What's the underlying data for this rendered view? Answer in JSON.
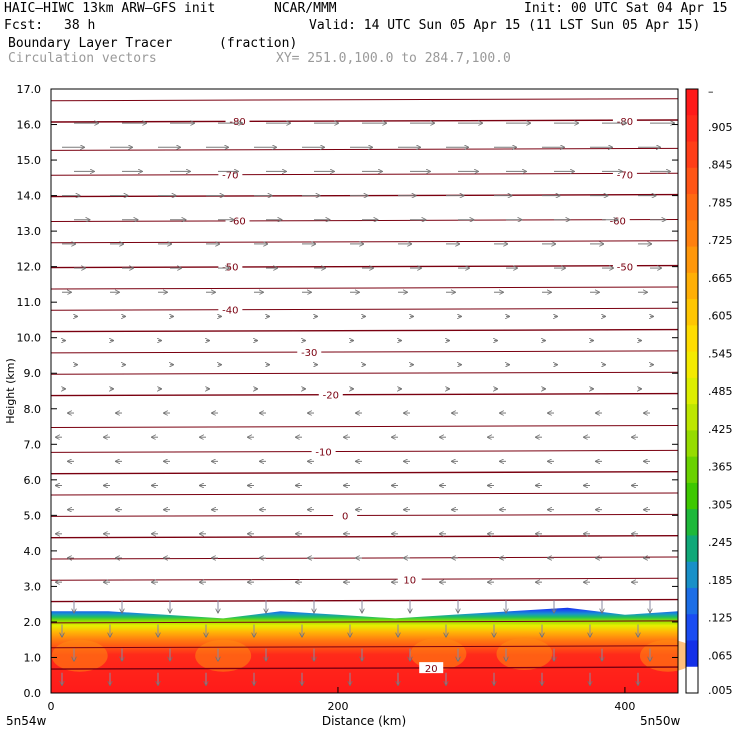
{
  "header": {
    "model": "HAIC–HIWC 13km ARW–GFS init",
    "org": "NCAR/MMM",
    "init": "Init: 00 UTC Sat 04 Apr 15",
    "fcst_label": "Fcst:",
    "fcst_value": "38 h",
    "valid": "Valid: 14 UTC Sun 05 Apr 15 (11 LST Sun 05 Apr 15)",
    "field": "Boundary Layer Tracer",
    "units": "(fraction)",
    "vectors": "Circulation vectors",
    "xy_range": "XY= 251.0,100.0 to 284.7,100.0"
  },
  "axes": {
    "ylabel": "Height (km)",
    "xlabel": "Distance (km)",
    "x_left_label": "5n54w",
    "x_right_label": "5n50w"
  },
  "colorbar": {
    "labels": [
      "–",
      ".905",
      ".845",
      ".785",
      ".725",
      ".665",
      ".605",
      ".545",
      ".485",
      ".425",
      ".365",
      ".305",
      ".245",
      ".185",
      ".125",
      ".065",
      ".005"
    ],
    "colors": [
      "#ff1a1a",
      "#ff2a1a",
      "#ff3e18",
      "#ff5516",
      "#ff6a12",
      "#ff800e",
      "#ff970a",
      "#ffaf06",
      "#ffc602",
      "#ffdc00",
      "#f4ea00",
      "#dcee00",
      "#bde600",
      "#96dc00",
      "#6ad200",
      "#3ec800",
      "#1eb83a",
      "#10a878",
      "#1890c8",
      "#1c6ee6",
      "#1a4cf2",
      "#1430e8",
      "#ffffff"
    ]
  },
  "chart_data": {
    "type": "heatmap",
    "title": "Boundary Layer Tracer",
    "xlabel": "Distance (km)",
    "ylabel": "Height (km)",
    "xlim": [
      0,
      437
    ],
    "ylim": [
      0,
      17
    ],
    "x_ticks": [
      0,
      200,
      400
    ],
    "y_ticks": [
      "0.0",
      "1.0",
      "2.0",
      "3.0",
      "4.0",
      "5.0",
      "6.0",
      "7.0",
      "8.0",
      "9.0",
      "10.0",
      "11.0",
      "12.0",
      "13.0",
      "14.0",
      "15.0",
      "16.0",
      "17.0"
    ],
    "colorbar_range": [
      0.005,
      0.905
    ],
    "boundary_layer_top_km": [
      2.3,
      2.3,
      2.2,
      2.1,
      2.3,
      2.2,
      2.1,
      2.2,
      2.3,
      2.4,
      2.2,
      2.3
    ],
    "boundary_layer_x_km": [
      0,
      40,
      80,
      120,
      160,
      200,
      240,
      280,
      320,
      360,
      400,
      437
    ],
    "contour_series": {
      "name": "temperature contours",
      "labels": [
        {
          "value": "-80",
          "x": 130,
          "y": 16.1
        },
        {
          "value": "-80",
          "x": 400,
          "y": 16.1
        },
        {
          "value": "-70",
          "x": 125,
          "y": 14.6
        },
        {
          "value": "-70",
          "x": 400,
          "y": 14.6
        },
        {
          "value": "-60",
          "x": 130,
          "y": 13.3
        },
        {
          "value": "-60",
          "x": 395,
          "y": 13.3
        },
        {
          "value": "-50",
          "x": 125,
          "y": 12.0
        },
        {
          "value": "-50",
          "x": 400,
          "y": 12.0
        },
        {
          "value": "-40",
          "x": 125,
          "y": 10.8
        },
        {
          "value": "-30",
          "x": 180,
          "y": 9.6
        },
        {
          "value": "-20",
          "x": 195,
          "y": 8.4
        },
        {
          "value": "-10",
          "x": 190,
          "y": 6.8
        },
        {
          "value": "0",
          "x": 205,
          "y": 5.0
        },
        {
          "value": "10",
          "x": 250,
          "y": 3.2
        },
        {
          "value": "20",
          "x": 265,
          "y": 0.7
        }
      ],
      "levels_km": [
        0.7,
        1.3,
        2.0,
        2.6,
        3.2,
        3.8,
        4.4,
        5.0,
        5.6,
        6.2,
        6.8,
        7.5,
        8.4,
        9.0,
        9.6,
        10.2,
        10.8,
        11.4,
        12.0,
        12.7,
        13.3,
        14.0,
        14.6,
        15.3,
        16.1,
        16.7
      ]
    }
  }
}
